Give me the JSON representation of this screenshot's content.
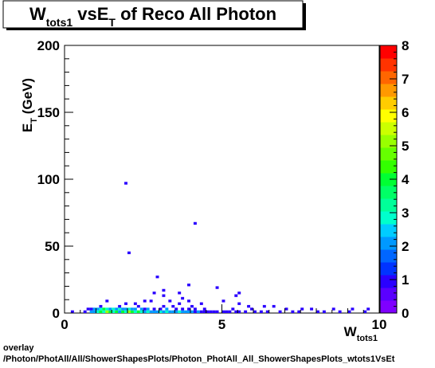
{
  "chart_data": {
    "type": "heatmap",
    "title_parts": [
      "W",
      "tots1",
      " vsE",
      "T",
      " of Reco All Photon"
    ],
    "xlabel_parts": [
      "W",
      "tots1"
    ],
    "ylabel_parts": [
      "E",
      "T",
      " (GeV)"
    ],
    "xlim": [
      0,
      10
    ],
    "ylim": [
      0,
      200
    ],
    "x_ticks": [
      "0",
      "5",
      "10"
    ],
    "y_ticks": [
      "0",
      "50",
      "100",
      "150",
      "200"
    ],
    "z_range": [
      0,
      8
    ],
    "z_ticks": [
      "0",
      "1",
      "2",
      "3",
      "4",
      "5",
      "6",
      "7",
      "8"
    ],
    "x_bin_width": 0.1,
    "y_bin_height": 2,
    "cells": [
      [
        0.25,
        1,
        1
      ],
      [
        0.65,
        1,
        1
      ],
      [
        0.75,
        3,
        1
      ],
      [
        0.85,
        1,
        2
      ],
      [
        0.85,
        3,
        1
      ],
      [
        0.95,
        1,
        2
      ],
      [
        0.95,
        3,
        2
      ],
      [
        1.05,
        1,
        3
      ],
      [
        1.05,
        3,
        2
      ],
      [
        1.15,
        1,
        4
      ],
      [
        1.15,
        3,
        3
      ],
      [
        1.15,
        5,
        1
      ],
      [
        1.25,
        1,
        3
      ],
      [
        1.25,
        3,
        4
      ],
      [
        1.35,
        1,
        5
      ],
      [
        1.35,
        3,
        3
      ],
      [
        1.45,
        1,
        4
      ],
      [
        1.45,
        3,
        2
      ],
      [
        1.55,
        1,
        3
      ],
      [
        1.55,
        3,
        3
      ],
      [
        1.65,
        1,
        4
      ],
      [
        1.65,
        3,
        2
      ],
      [
        1.75,
        1,
        2
      ],
      [
        1.75,
        3,
        3
      ],
      [
        1.75,
        5,
        1
      ],
      [
        1.85,
        1,
        4
      ],
      [
        1.85,
        3,
        2
      ],
      [
        1.95,
        1,
        3
      ],
      [
        1.95,
        3,
        2
      ],
      [
        2.05,
        1,
        5
      ],
      [
        2.05,
        3,
        3
      ],
      [
        2.15,
        1,
        4
      ],
      [
        2.15,
        3,
        2
      ],
      [
        2.25,
        1,
        3
      ],
      [
        2.25,
        3,
        2
      ],
      [
        2.35,
        1,
        4
      ],
      [
        2.35,
        5,
        1
      ],
      [
        2.45,
        1,
        3
      ],
      [
        2.45,
        3,
        2
      ],
      [
        2.55,
        1,
        2
      ],
      [
        2.55,
        3,
        1
      ],
      [
        2.65,
        1,
        3
      ],
      [
        2.65,
        3,
        2
      ],
      [
        2.75,
        1,
        2
      ],
      [
        2.75,
        9,
        1
      ],
      [
        2.85,
        1,
        2
      ],
      [
        2.85,
        3,
        1
      ],
      [
        2.95,
        1,
        2
      ],
      [
        3.05,
        1,
        3
      ],
      [
        3.05,
        3,
        1
      ],
      [
        3.15,
        1,
        2
      ],
      [
        3.15,
        5,
        1
      ],
      [
        3.25,
        1,
        3
      ],
      [
        3.25,
        3,
        2
      ],
      [
        3.35,
        1,
        2
      ],
      [
        3.45,
        1,
        2
      ],
      [
        3.45,
        5,
        1
      ],
      [
        3.55,
        1,
        2
      ],
      [
        3.55,
        3,
        1
      ],
      [
        3.65,
        1,
        3
      ],
      [
        3.65,
        7,
        1
      ],
      [
        3.75,
        1,
        2
      ],
      [
        3.75,
        3,
        1
      ],
      [
        3.85,
        1,
        2
      ],
      [
        3.95,
        1,
        2
      ],
      [
        3.95,
        3,
        1
      ],
      [
        4.05,
        1,
        2
      ],
      [
        4.05,
        5,
        1
      ],
      [
        4.15,
        1,
        1
      ],
      [
        4.15,
        3,
        1
      ],
      [
        4.25,
        1,
        2
      ],
      [
        4.35,
        1,
        1
      ],
      [
        4.45,
        1,
        1
      ],
      [
        4.45,
        3,
        1
      ],
      [
        4.55,
        1,
        1
      ],
      [
        4.65,
        1,
        1
      ],
      [
        4.75,
        1,
        1
      ],
      [
        4.85,
        1,
        1
      ],
      [
        5.05,
        1,
        1
      ],
      [
        5.15,
        1,
        1
      ],
      [
        5.25,
        1,
        1
      ],
      [
        5.35,
        3,
        1
      ],
      [
        5.45,
        1,
        1
      ],
      [
        5.55,
        1,
        1
      ],
      [
        5.75,
        1,
        1
      ],
      [
        5.95,
        3,
        1
      ],
      [
        6.05,
        1,
        1
      ],
      [
        6.25,
        1,
        1
      ],
      [
        6.45,
        1,
        1
      ],
      [
        6.85,
        1,
        1
      ],
      [
        7.05,
        3,
        1
      ],
      [
        7.25,
        1,
        1
      ],
      [
        7.45,
        1,
        1
      ],
      [
        7.85,
        3,
        1
      ],
      [
        8.05,
        1,
        1
      ],
      [
        8.25,
        1,
        1
      ],
      [
        8.75,
        1,
        1
      ],
      [
        9.05,
        1,
        1
      ],
      [
        9.55,
        1,
        1
      ],
      [
        3.15,
        13,
        1
      ],
      [
        3.35,
        9,
        1
      ],
      [
        2.25,
        7,
        1
      ],
      [
        2.55,
        9,
        1
      ],
      [
        3.75,
        11,
        1
      ],
      [
        1.35,
        9,
        1
      ],
      [
        1.95,
        7,
        1
      ],
      [
        5.05,
        9,
        1
      ],
      [
        5.55,
        7,
        1
      ],
      [
        3.95,
        9,
        1
      ],
      [
        4.35,
        7,
        1
      ],
      [
        6.35,
        5,
        1
      ],
      [
        2.85,
        15,
        1
      ],
      [
        3.65,
        15,
        1
      ],
      [
        3.15,
        17,
        1
      ],
      [
        5.45,
        13,
        1
      ],
      [
        4.85,
        19,
        1
      ],
      [
        5.55,
        15,
        1
      ],
      [
        3.95,
        21,
        1
      ],
      [
        5.85,
        5,
        1
      ],
      [
        6.65,
        5,
        1
      ],
      [
        7.55,
        3,
        1
      ],
      [
        8.55,
        3,
        1
      ],
      [
        9.15,
        3,
        1
      ],
      [
        9.65,
        3,
        1
      ],
      [
        2.95,
        27,
        1
      ],
      [
        2.05,
        45,
        1
      ],
      [
        4.15,
        67,
        1
      ],
      [
        1.95,
        97,
        1
      ]
    ],
    "grid": false,
    "legend": "colorbar-right"
  },
  "footer": {
    "line1": "overlay",
    "line2": "/Photon/PhotAll/All/ShowerShapesPlots/Photon_PhotAll_All_ShowerShapesPlots_wtots1VsEt"
  }
}
